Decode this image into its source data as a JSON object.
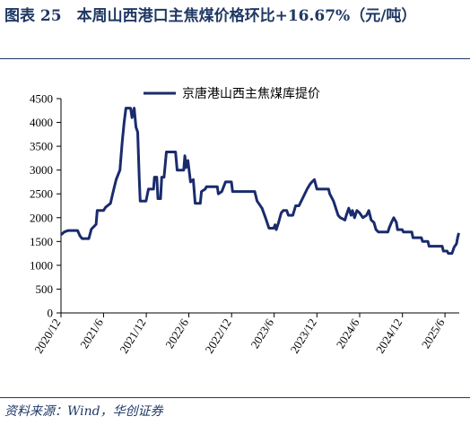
{
  "figure": {
    "title": "图表 25　本周山西港口主焦煤价格环比+16.67%（元/吨）",
    "source": "资料来源：Wind，华创证券"
  },
  "chart_data": {
    "type": "line",
    "title": "",
    "xlabel": "",
    "ylabel": "",
    "ylim": [
      0,
      4500
    ],
    "yticks": [
      0,
      500,
      1000,
      1500,
      2000,
      2500,
      3000,
      3500,
      4000,
      4500
    ],
    "xticks": [
      "2020/12",
      "2021/6",
      "2021/12",
      "2022/6",
      "2022/12",
      "2023/6",
      "2023/12",
      "2024/6",
      "2024/12",
      "2025/6"
    ],
    "legend_position": "top-center",
    "grid": false,
    "series": [
      {
        "name": "京唐港山西主焦煤库提价",
        "color": "#1a2b6d",
        "points": [
          [
            "2020-12-01",
            1640
          ],
          [
            "2020-12-15",
            1700
          ],
          [
            "2021-01-01",
            1730
          ],
          [
            "2021-02-10",
            1730
          ],
          [
            "2021-02-20",
            1620
          ],
          [
            "2021-03-01",
            1560
          ],
          [
            "2021-03-30",
            1560
          ],
          [
            "2021-04-10",
            1760
          ],
          [
            "2021-04-30",
            1860
          ],
          [
            "2021-05-05",
            2150
          ],
          [
            "2021-06-01",
            2150
          ],
          [
            "2021-06-10",
            2220
          ],
          [
            "2021-07-01",
            2300
          ],
          [
            "2021-07-10",
            2500
          ],
          [
            "2021-07-25",
            2800
          ],
          [
            "2021-08-10",
            3000
          ],
          [
            "2021-08-20",
            3600
          ],
          [
            "2021-08-28",
            4000
          ],
          [
            "2021-09-05",
            4300
          ],
          [
            "2021-09-25",
            4300
          ],
          [
            "2021-10-01",
            4100
          ],
          [
            "2021-10-10",
            4300
          ],
          [
            "2021-10-18",
            3900
          ],
          [
            "2021-10-25",
            3800
          ],
          [
            "2021-11-01",
            2800
          ],
          [
            "2021-11-05",
            2350
          ],
          [
            "2021-11-30",
            2350
          ],
          [
            "2021-12-10",
            2600
          ],
          [
            "2022-01-01",
            2600
          ],
          [
            "2022-01-05",
            2850
          ],
          [
            "2022-01-15",
            2850
          ],
          [
            "2022-01-20",
            2400
          ],
          [
            "2022-01-31",
            2400
          ],
          [
            "2022-02-05",
            2850
          ],
          [
            "2022-02-15",
            2850
          ],
          [
            "2022-02-25",
            3380
          ],
          [
            "2022-04-05",
            3380
          ],
          [
            "2022-04-12",
            3000
          ],
          [
            "2022-05-10",
            3000
          ],
          [
            "2022-05-15",
            3300
          ],
          [
            "2022-05-20",
            3050
          ],
          [
            "2022-05-28",
            3200
          ],
          [
            "2022-06-08",
            2750
          ],
          [
            "2022-06-20",
            2800
          ],
          [
            "2022-06-28",
            2300
          ],
          [
            "2022-07-20",
            2300
          ],
          [
            "2022-07-25",
            2550
          ],
          [
            "2022-08-10",
            2600
          ],
          [
            "2022-08-15",
            2650
          ],
          [
            "2022-10-01",
            2650
          ],
          [
            "2022-10-05",
            2500
          ],
          [
            "2022-10-20",
            2550
          ],
          [
            "2022-11-01",
            2700
          ],
          [
            "2022-11-05",
            2750
          ],
          [
            "2022-11-30",
            2750
          ],
          [
            "2022-12-05",
            2550
          ],
          [
            "2023-03-10",
            2550
          ],
          [
            "2023-03-20",
            2350
          ],
          [
            "2023-04-10",
            2200
          ],
          [
            "2023-04-25",
            2000
          ],
          [
            "2023-05-10",
            1780
          ],
          [
            "2023-05-30",
            1780
          ],
          [
            "2023-06-05",
            1850
          ],
          [
            "2023-06-10",
            1750
          ],
          [
            "2023-06-20",
            1900
          ],
          [
            "2023-07-01",
            2100
          ],
          [
            "2023-07-10",
            2150
          ],
          [
            "2023-07-25",
            2150
          ],
          [
            "2023-08-01",
            2050
          ],
          [
            "2023-08-20",
            2050
          ],
          [
            "2023-09-01",
            2250
          ],
          [
            "2023-09-15",
            2250
          ],
          [
            "2023-10-05",
            2450
          ],
          [
            "2023-10-20",
            2600
          ],
          [
            "2023-11-01",
            2700
          ],
          [
            "2023-11-10",
            2750
          ],
          [
            "2023-11-20",
            2800
          ],
          [
            "2023-12-01",
            2600
          ],
          [
            "2024-01-20",
            2600
          ],
          [
            "2024-01-25",
            2500
          ],
          [
            "2024-02-10",
            2350
          ],
          [
            "2024-02-20",
            2200
          ],
          [
            "2024-03-01",
            2050
          ],
          [
            "2024-03-10",
            2000
          ],
          [
            "2024-03-30",
            1950
          ],
          [
            "2024-04-05",
            2050
          ],
          [
            "2024-04-15",
            2200
          ],
          [
            "2024-04-25",
            2050
          ],
          [
            "2024-05-01",
            2150
          ],
          [
            "2024-05-10",
            2000
          ],
          [
            "2024-05-20",
            2150
          ],
          [
            "2024-06-01",
            2100
          ],
          [
            "2024-06-15",
            2000
          ],
          [
            "2024-06-30",
            2050
          ],
          [
            "2024-07-10",
            2150
          ],
          [
            "2024-07-20",
            1950
          ],
          [
            "2024-08-01",
            1900
          ],
          [
            "2024-08-10",
            1750
          ],
          [
            "2024-08-20",
            1700
          ],
          [
            "2024-09-30",
            1700
          ],
          [
            "2024-10-05",
            1780
          ],
          [
            "2024-10-15",
            1900
          ],
          [
            "2024-10-25",
            2000
          ],
          [
            "2024-11-05",
            1900
          ],
          [
            "2024-11-10",
            1750
          ],
          [
            "2024-11-30",
            1750
          ],
          [
            "2024-12-05",
            1700
          ],
          [
            "2025-01-10",
            1700
          ],
          [
            "2025-01-15",
            1580
          ],
          [
            "2025-02-20",
            1580
          ],
          [
            "2025-02-25",
            1500
          ],
          [
            "2025-03-20",
            1500
          ],
          [
            "2025-03-25",
            1400
          ],
          [
            "2025-05-20",
            1400
          ],
          [
            "2025-05-25",
            1300
          ],
          [
            "2025-06-10",
            1300
          ],
          [
            "2025-06-15",
            1250
          ],
          [
            "2025-07-01",
            1250
          ],
          [
            "2025-07-10",
            1380
          ],
          [
            "2025-07-20",
            1450
          ],
          [
            "2025-07-25",
            1580
          ],
          [
            "2025-07-30",
            1680
          ]
        ]
      }
    ]
  }
}
